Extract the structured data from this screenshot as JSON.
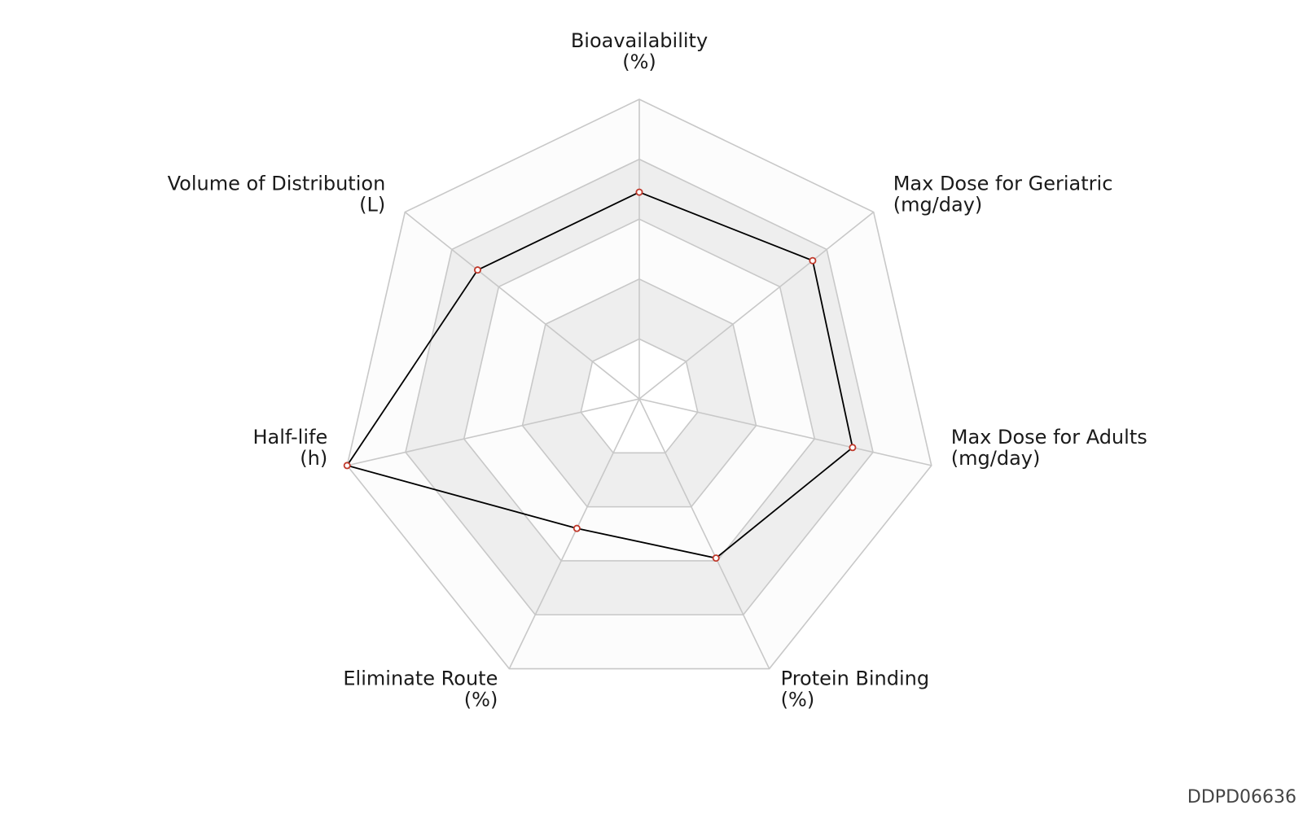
{
  "chart_data": {
    "type": "radar",
    "axes": [
      {
        "name": "Bioavailability",
        "unit": "(%)"
      },
      {
        "name": "Max Dose for Geriatric",
        "unit": "(mg/day)"
      },
      {
        "name": "Max Dose for Adults",
        "unit": "(mg/day)"
      },
      {
        "name": "Protein Binding",
        "unit": "(%)"
      },
      {
        "name": "Eliminate Route",
        "unit": "(%)"
      },
      {
        "name": "Half-life",
        "unit": "(h)"
      },
      {
        "name": "Volume of Distribution",
        "unit": "(L)"
      }
    ],
    "levels": 5,
    "range": [
      0,
      1
    ],
    "values": [
      0.69,
      0.74,
      0.73,
      0.59,
      0.48,
      1.0,
      0.69
    ],
    "grid": true,
    "colors": {
      "line": "#000000",
      "marker": "#c0392b",
      "grid": "#c8c8c8",
      "band_light": "#fcfcfc",
      "band_dark": "#eeeeee"
    }
  },
  "watermark": "DDPD06636"
}
